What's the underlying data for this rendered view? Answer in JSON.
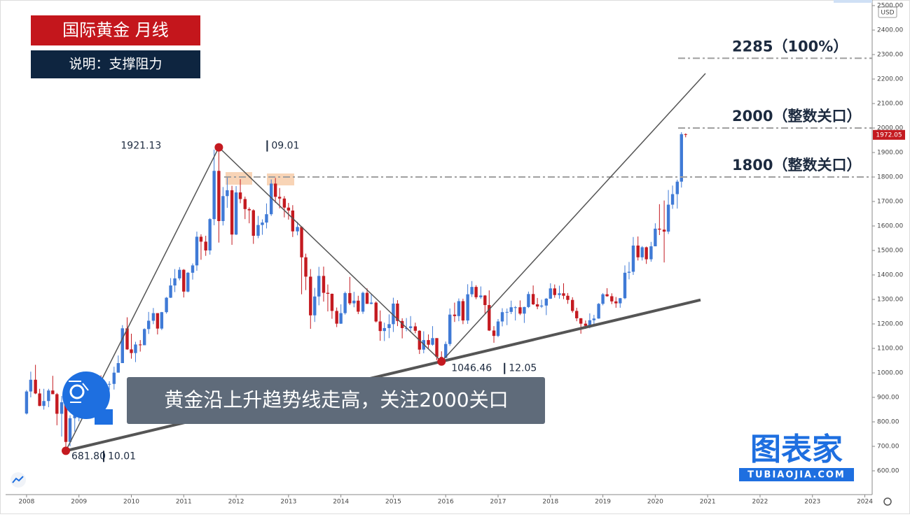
{
  "chart_data": {
    "type": "candlestick",
    "title": "国际黄金 月线",
    "subtitle": "说明：支撑阻力",
    "caption": "黄金沿上升趋势线走高，关注2000关口",
    "currency": "USD",
    "brand": "图表家",
    "brand_url": "TUBIAOJIA.COM",
    "up_color": "#3f7ad6",
    "down_color": "#c41a20",
    "xlim": [
      2007.6,
      2024.14
    ],
    "xticks": [
      2008,
      2009,
      2010,
      2011,
      2012,
      2013,
      2014,
      2015,
      2016,
      2017,
      2018,
      2019,
      2020,
      2021,
      2022,
      2023,
      2024
    ],
    "ylim": [
      600,
      2500
    ],
    "yticks": [
      {
        "value": 600,
        "label": "600.00"
      },
      {
        "value": 700,
        "label": "700.00"
      },
      {
        "value": 800,
        "label": "800.00"
      },
      {
        "value": 900,
        "label": "900.00"
      },
      {
        "value": 1000,
        "label": "1000.00"
      },
      {
        "value": 1100,
        "label": "1100.00"
      },
      {
        "value": 1200,
        "label": "1200.00"
      },
      {
        "value": 1300,
        "label": "1300.00"
      },
      {
        "value": 1400,
        "label": "1400.00"
      },
      {
        "value": 1500,
        "label": "1500.00"
      },
      {
        "value": 1600,
        "label": "1600.00"
      },
      {
        "value": 1700,
        "label": "1700.00"
      },
      {
        "value": 1800,
        "label": "1800.00"
      },
      {
        "value": 1900,
        "label": "1900.00"
      },
      {
        "value": 2000,
        "label": "2000.00"
      },
      {
        "value": 2100,
        "label": "2100.00"
      },
      {
        "value": 2200,
        "label": "2200.00"
      },
      {
        "value": 2300,
        "label": "2300.00"
      },
      {
        "value": 2400,
        "label": "2400.00"
      },
      {
        "value": 2500,
        "label": "2500.00"
      }
    ],
    "levels": [
      {
        "value": 2285,
        "label": "2285（100%）"
      },
      {
        "value": 2000,
        "label": "2000（整数关口）"
      },
      {
        "value": 1800,
        "label": "1800（整数关口）"
      }
    ],
    "pivots": [
      {
        "x": 2008.75,
        "value": 681.8,
        "label": "681.80",
        "date": "10.01"
      },
      {
        "x": 2011.67,
        "value": 1921.13,
        "label": "1921.13",
        "date": "09.01"
      },
      {
        "x": 2015.92,
        "value": 1046.46,
        "label": "1046.46",
        "date": "12.05"
      }
    ],
    "x": [
      2008,
      2008.08,
      2008.17,
      2008.25,
      2008.33,
      2008.42,
      2008.5,
      2008.58,
      2008.67,
      2008.75,
      2008.83,
      2008.92,
      2009,
      2009.08,
      2009.17,
      2009.25,
      2009.33,
      2009.42,
      2009.5,
      2009.58,
      2009.67,
      2009.75,
      2009.83,
      2009.92,
      2010,
      2010.08,
      2010.17,
      2010.25,
      2010.33,
      2010.42,
      2010.5,
      2010.58,
      2010.67,
      2010.75,
      2010.83,
      2010.92,
      2011,
      2011.08,
      2011.17,
      2011.25,
      2011.33,
      2011.42,
      2011.5,
      2011.58,
      2011.67,
      2011.75,
      2011.83,
      2011.92,
      2012,
      2012.08,
      2012.17,
      2012.25,
      2012.33,
      2012.42,
      2012.5,
      2012.58,
      2012.67,
      2012.75,
      2012.83,
      2012.92,
      2013,
      2013.08,
      2013.17,
      2013.25,
      2013.33,
      2013.42,
      2013.5,
      2013.58,
      2013.67,
      2013.75,
      2013.83,
      2013.92,
      2014,
      2014.08,
      2014.17,
      2014.25,
      2014.33,
      2014.42,
      2014.5,
      2014.58,
      2014.67,
      2014.75,
      2014.83,
      2014.92,
      2015,
      2015.08,
      2015.17,
      2015.25,
      2015.33,
      2015.42,
      2015.5,
      2015.58,
      2015.67,
      2015.75,
      2015.83,
      2015.92,
      2016,
      2016.08,
      2016.17,
      2016.25,
      2016.33,
      2016.42,
      2016.5,
      2016.58,
      2016.67,
      2016.75,
      2016.83,
      2016.92,
      2017,
      2017.08,
      2017.17,
      2017.25,
      2017.33,
      2017.42,
      2017.5,
      2017.58,
      2017.67,
      2017.75,
      2017.83,
      2017.92,
      2018,
      2018.08,
      2018.17,
      2018.25,
      2018.33,
      2018.42,
      2018.5,
      2018.58,
      2018.67,
      2018.75,
      2018.83,
      2018.92,
      2019,
      2019.08,
      2019.17,
      2019.25,
      2019.33,
      2019.42,
      2019.5,
      2019.58,
      2019.67,
      2019.75,
      2019.83,
      2019.92,
      2020,
      2020.08,
      2020.17,
      2020.25,
      2020.33,
      2020.42,
      2020.5,
      2020.58
    ],
    "ohlc": [
      [
        834,
        930,
        830,
        924
      ],
      [
        924,
        1005,
        900,
        972
      ],
      [
        972,
        1033,
        913,
        916
      ],
      [
        916,
        935,
        864,
        865
      ],
      [
        865,
        935,
        850,
        885
      ],
      [
        885,
        935,
        860,
        928
      ],
      [
        928,
        988,
        913,
        913
      ],
      [
        913,
        918,
        786,
        833
      ],
      [
        833,
        906,
        740,
        880
      ],
      [
        880,
        935,
        681.8,
        718
      ],
      [
        718,
        827,
        700,
        815
      ],
      [
        815,
        885,
        760,
        869
      ],
      [
        869,
        935,
        802,
        928
      ],
      [
        928,
        1005,
        890,
        942
      ],
      [
        942,
        962,
        865,
        916
      ],
      [
        916,
        919,
        865,
        884
      ],
      [
        884,
        982,
        880,
        979
      ],
      [
        979,
        990,
        910,
        927
      ],
      [
        927,
        960,
        908,
        954
      ],
      [
        954,
        966,
        930,
        955
      ],
      [
        955,
        1025,
        932,
        1001
      ],
      [
        1001,
        1071,
        1001,
        1040
      ],
      [
        1040,
        1195,
        1040,
        1182
      ],
      [
        1182,
        1227,
        1094,
        1096
      ],
      [
        1096,
        1160,
        1058,
        1081
      ],
      [
        1081,
        1127,
        1044,
        1116
      ],
      [
        1116,
        1134,
        1087,
        1113
      ],
      [
        1113,
        1182,
        1113,
        1179
      ],
      [
        1179,
        1249,
        1159,
        1213
      ],
      [
        1213,
        1265,
        1199,
        1244
      ],
      [
        1244,
        1244,
        1157,
        1181
      ],
      [
        1181,
        1249,
        1175,
        1248
      ],
      [
        1248,
        1310,
        1242,
        1307
      ],
      [
        1307,
        1387,
        1306,
        1357
      ],
      [
        1357,
        1424,
        1330,
        1386
      ],
      [
        1386,
        1432,
        1378,
        1421
      ],
      [
        1421,
        1424,
        1308,
        1332
      ],
      [
        1332,
        1412,
        1329,
        1409
      ],
      [
        1409,
        1447,
        1381,
        1439
      ],
      [
        1439,
        1577,
        1417,
        1556
      ],
      [
        1556,
        1566,
        1462,
        1536
      ],
      [
        1536,
        1560,
        1478,
        1500
      ],
      [
        1500,
        1632,
        1483,
        1628
      ],
      [
        1628,
        1912,
        1603,
        1825
      ],
      [
        1825,
        1921.13,
        1532,
        1620
      ],
      [
        1620,
        1759,
        1602,
        1722
      ],
      [
        1722,
        1803,
        1674,
        1746
      ],
      [
        1746,
        1764,
        1523,
        1565
      ],
      [
        1565,
        1763,
        1563,
        1737
      ],
      [
        1737,
        1791,
        1693,
        1710
      ],
      [
        1710,
        1720,
        1628,
        1669
      ],
      [
        1669,
        1676,
        1611,
        1664
      ],
      [
        1664,
        1668,
        1527,
        1560
      ],
      [
        1560,
        1641,
        1550,
        1604
      ],
      [
        1604,
        1627,
        1564,
        1614
      ],
      [
        1614,
        1692,
        1590,
        1648
      ],
      [
        1648,
        1790,
        1641,
        1773
      ],
      [
        1773,
        1796,
        1694,
        1719
      ],
      [
        1719,
        1755,
        1672,
        1712
      ],
      [
        1712,
        1722,
        1635,
        1675
      ],
      [
        1675,
        1694,
        1626,
        1663
      ],
      [
        1663,
        1685,
        1555,
        1578
      ],
      [
        1578,
        1617,
        1562,
        1596
      ],
      [
        1596,
        1599,
        1321,
        1472
      ],
      [
        1472,
        1487,
        1338,
        1393
      ],
      [
        1393,
        1424,
        1180,
        1235
      ],
      [
        1235,
        1347,
        1208,
        1312
      ],
      [
        1312,
        1433,
        1276,
        1396
      ],
      [
        1396,
        1434,
        1291,
        1327
      ],
      [
        1327,
        1361,
        1251,
        1323
      ],
      [
        1323,
        1324,
        1221,
        1253
      ],
      [
        1253,
        1267,
        1187,
        1201
      ],
      [
        1201,
        1280,
        1200,
        1244
      ],
      [
        1244,
        1332,
        1238,
        1326
      ],
      [
        1326,
        1392,
        1277,
        1284
      ],
      [
        1284,
        1331,
        1268,
        1295
      ],
      [
        1295,
        1315,
        1240,
        1250
      ],
      [
        1250,
        1332,
        1241,
        1327
      ],
      [
        1327,
        1345,
        1282,
        1282
      ],
      [
        1282,
        1321,
        1280,
        1287
      ],
      [
        1287,
        1292,
        1206,
        1210
      ],
      [
        1210,
        1255,
        1131,
        1171
      ],
      [
        1171,
        1205,
        1130,
        1183
      ],
      [
        1183,
        1239,
        1142,
        1199
      ],
      [
        1199,
        1307,
        1167,
        1283
      ],
      [
        1283,
        1297,
        1191,
        1212
      ],
      [
        1212,
        1223,
        1141,
        1183
      ],
      [
        1183,
        1224,
        1170,
        1183
      ],
      [
        1183,
        1232,
        1168,
        1190
      ],
      [
        1190,
        1205,
        1162,
        1172
      ],
      [
        1172,
        1174,
        1077,
        1095
      ],
      [
        1095,
        1170,
        1080,
        1134
      ],
      [
        1134,
        1157,
        1098,
        1115
      ],
      [
        1115,
        1191,
        1111,
        1142
      ],
      [
        1142,
        1142,
        1052,
        1065
      ],
      [
        1065,
        1088,
        1046.46,
        1061
      ],
      [
        1061,
        1128,
        1061,
        1118
      ],
      [
        1118,
        1263,
        1110,
        1238
      ],
      [
        1238,
        1287,
        1208,
        1232
      ],
      [
        1232,
        1304,
        1211,
        1293
      ],
      [
        1293,
        1303,
        1199,
        1214
      ],
      [
        1214,
        1362,
        1200,
        1321
      ],
      [
        1321,
        1375,
        1310,
        1351
      ],
      [
        1351,
        1358,
        1301,
        1309
      ],
      [
        1309,
        1353,
        1302,
        1316
      ],
      [
        1316,
        1318,
        1241,
        1277
      ],
      [
        1277,
        1337,
        1171,
        1173
      ],
      [
        1173,
        1191,
        1123,
        1151
      ],
      [
        1151,
        1220,
        1146,
        1210
      ],
      [
        1210,
        1264,
        1190,
        1248
      ],
      [
        1248,
        1263,
        1195,
        1249
      ],
      [
        1249,
        1295,
        1240,
        1268
      ],
      [
        1268,
        1273,
        1214,
        1268
      ],
      [
        1268,
        1296,
        1236,
        1242
      ],
      [
        1242,
        1270,
        1204,
        1269
      ],
      [
        1269,
        1332,
        1265,
        1322
      ],
      [
        1322,
        1357,
        1277,
        1280
      ],
      [
        1280,
        1306,
        1260,
        1271
      ],
      [
        1271,
        1299,
        1265,
        1275
      ],
      [
        1275,
        1306,
        1236,
        1303
      ],
      [
        1303,
        1366,
        1302,
        1345
      ],
      [
        1345,
        1361,
        1307,
        1318
      ],
      [
        1318,
        1356,
        1303,
        1325
      ],
      [
        1325,
        1366,
        1301,
        1315
      ],
      [
        1315,
        1326,
        1282,
        1298
      ],
      [
        1298,
        1309,
        1246,
        1253
      ],
      [
        1253,
        1266,
        1211,
        1223
      ],
      [
        1223,
        1224,
        1160,
        1201
      ],
      [
        1201,
        1214,
        1180,
        1192
      ],
      [
        1192,
        1243,
        1182,
        1215
      ],
      [
        1215,
        1237,
        1196,
        1222
      ],
      [
        1222,
        1285,
        1221,
        1282
      ],
      [
        1282,
        1326,
        1276,
        1321
      ],
      [
        1321,
        1346,
        1311,
        1313
      ],
      [
        1313,
        1325,
        1281,
        1292
      ],
      [
        1292,
        1310,
        1266,
        1284
      ],
      [
        1284,
        1306,
        1266,
        1305
      ],
      [
        1305,
        1439,
        1301,
        1409
      ],
      [
        1409,
        1453,
        1382,
        1413
      ],
      [
        1413,
        1555,
        1400,
        1520
      ],
      [
        1520,
        1557,
        1459,
        1472
      ],
      [
        1472,
        1518,
        1459,
        1513
      ],
      [
        1513,
        1516,
        1445,
        1464
      ],
      [
        1464,
        1535,
        1454,
        1517
      ],
      [
        1517,
        1611,
        1517,
        1589
      ],
      [
        1589,
        1689,
        1563,
        1585
      ],
      [
        1585,
        1704,
        1451,
        1577
      ],
      [
        1577,
        1747,
        1567,
        1687
      ],
      [
        1687,
        1765,
        1670,
        1730
      ],
      [
        1730,
        1789,
        1671,
        1781
      ],
      [
        1781,
        1983,
        1757,
        1975
      ],
      [
        1975,
        1978,
        1962,
        1972.05
      ]
    ]
  }
}
